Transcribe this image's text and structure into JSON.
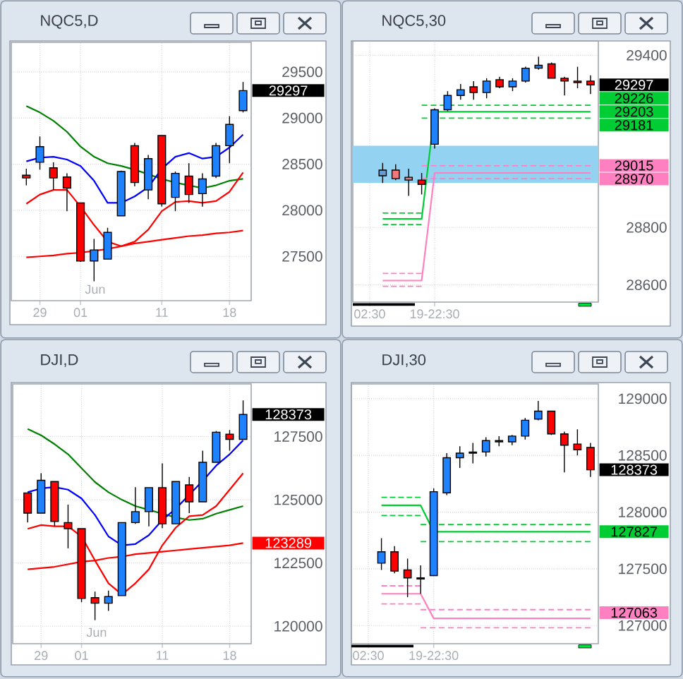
{
  "chart_data": [
    {
      "type": "candlestick",
      "title": "NQC5,D",
      "categories": [
        null,
        "29",
        null,
        null,
        "01",
        null,
        null,
        null,
        null,
        null,
        "11",
        null,
        null,
        null,
        null,
        "18",
        null
      ],
      "ohlc": [
        [
          28380,
          28450,
          28270,
          28350
        ],
        [
          28520,
          28800,
          28440,
          28690
        ],
        [
          28460,
          28520,
          28220,
          28350
        ],
        [
          28360,
          28400,
          27990,
          28240
        ],
        [
          28080,
          28080,
          27440,
          27450
        ],
        [
          27450,
          27690,
          27230,
          27570
        ],
        [
          27470,
          27810,
          27470,
          27760
        ],
        [
          27940,
          28430,
          27940,
          28420
        ],
        [
          28700,
          28730,
          28260,
          28300
        ],
        [
          28220,
          28600,
          28120,
          28560
        ],
        [
          28810,
          28810,
          28040,
          28070
        ],
        [
          28140,
          28420,
          27990,
          28400
        ],
        [
          28370,
          28510,
          28080,
          28170
        ],
        [
          28180,
          28400,
          28040,
          28340
        ],
        [
          28370,
          28730,
          28350,
          28700
        ],
        [
          28700,
          29020,
          28510,
          28930
        ],
        [
          29080,
          29390,
          29060,
          29297
        ]
      ],
      "value_labels": [
        null,
        null,
        null,
        null,
        null,
        null,
        null,
        null,
        null,
        null,
        null,
        null,
        null,
        null,
        null,
        null,
        "29297"
      ],
      "colors": [
        "#ff0000",
        "#1e82ff",
        "#ff0000",
        "#ff0000",
        "#ff0000",
        "#1e82ff",
        "#1e82ff",
        "#1e82ff",
        "#ff0000",
        "#1e82ff",
        "#ff0000",
        "#1e82ff",
        "#ff0000",
        "#1e82ff",
        "#1e82ff",
        "#1e82ff",
        "#1e82ff"
      ],
      "series": [
        {
          "type": "line",
          "color": "#008000",
          "values": [
            29130,
            29060,
            28970,
            28850,
            28690,
            28580,
            28510,
            28480,
            28440,
            28390,
            28340,
            28300,
            28270,
            28240,
            28270,
            28320,
            28340
          ]
        },
        {
          "type": "line",
          "color": "#0000ff",
          "values": [
            28530,
            28570,
            28580,
            28550,
            28480,
            28320,
            28080,
            28080,
            28150,
            28250,
            28450,
            28580,
            28620,
            28560,
            28580,
            28680,
            28820
          ]
        },
        {
          "type": "line",
          "color": "#ff0000",
          "values": [
            28070,
            28170,
            28220,
            28220,
            28040,
            27840,
            27660,
            27610,
            27660,
            27790,
            27990,
            28090,
            28100,
            28080,
            28100,
            28200,
            28410
          ]
        },
        {
          "type": "line",
          "color": "#ff0000",
          "values": [
            27490,
            27500,
            27510,
            27530,
            27540,
            27560,
            27580,
            27610,
            27640,
            27660,
            27680,
            27700,
            27720,
            27730,
            27750,
            27760,
            27780
          ]
        }
      ],
      "ylim": [
        27020,
        29820
      ],
      "yticks": [
        27500,
        28000,
        28500,
        29000,
        29500
      ],
      "grid": true,
      "annotations": [
        "Jun"
      ]
    },
    {
      "type": "candlestick",
      "title": "NQC5,30",
      "categories": [
        "02:30",
        null,
        null,
        null,
        null,
        "19-22:30",
        null,
        null,
        null,
        null,
        null,
        null,
        null,
        null,
        null,
        null,
        null,
        null
      ],
      "ohlc": [
        null,
        [
          28980,
          29025,
          28955,
          29000
        ],
        [
          29000,
          29020,
          28965,
          28970
        ],
        [
          28975,
          29005,
          28910,
          28965
        ],
        [
          28965,
          28990,
          28915,
          28950
        ],
        [
          29090,
          29215,
          29075,
          29210
        ],
        [
          29210,
          29275,
          29205,
          29260
        ],
        [
          29260,
          29300,
          29245,
          29280
        ],
        [
          29290,
          29310,
          29245,
          29270
        ],
        [
          29270,
          29320,
          29250,
          29310
        ],
        [
          29315,
          29325,
          29285,
          29290
        ],
        [
          29290,
          29320,
          29275,
          29310
        ],
        [
          29310,
          29360,
          29305,
          29355
        ],
        [
          29355,
          29395,
          29350,
          29365
        ],
        [
          29370,
          29375,
          29320,
          29320
        ],
        [
          29320,
          29325,
          29260,
          29310
        ],
        [
          29310,
          29360,
          29285,
          29305
        ],
        [
          29310,
          29330,
          29265,
          29297
        ]
      ],
      "value_labels": [
        null,
        null,
        null,
        null,
        null,
        null,
        null,
        null,
        null,
        null,
        null,
        null,
        null,
        null,
        null,
        null,
        null,
        "29297"
      ],
      "colors": [
        null,
        "#6a9bd0",
        "#f07878",
        "#c88080",
        "#ff0000",
        "#1e82ff",
        "#1e82ff",
        "#1e82ff",
        "#ff0000",
        "#1e82ff",
        "#ff0000",
        "#1e82ff",
        "#1e82ff",
        "#1e82ff",
        "#ff0000",
        "#ff0000",
        "#ff0000",
        "#ff0000"
      ],
      "series": [
        {
          "type": "line",
          "color": "#00cc33",
          "values": [
            null,
            28830,
            28830,
            28830,
            28830,
            29203,
            29203,
            29203,
            29203,
            29203,
            29203,
            29203,
            29203,
            29203,
            29203,
            29203,
            29203,
            29203
          ],
          "value_labels": [
            null,
            null,
            null,
            null,
            null,
            null,
            null,
            null,
            null,
            null,
            null,
            null,
            null,
            null,
            null,
            null,
            null,
            "29203"
          ]
        },
        {
          "type": "line",
          "color": "#00cc33",
          "line_style": "dashed",
          "values": [
            null,
            28850,
            28850,
            28850,
            28850,
            null,
            null,
            null,
            null,
            null,
            null,
            null,
            null,
            null,
            null,
            null,
            null,
            null
          ]
        },
        {
          "type": "line",
          "color": "#00cc33",
          "line_style": "dashed",
          "values": [
            null,
            null,
            null,
            null,
            29226,
            29226,
            29226,
            29226,
            29226,
            29226,
            29226,
            29226,
            29226,
            29226,
            29226,
            29226,
            29226,
            29226
          ],
          "value_labels": [
            null,
            null,
            null,
            null,
            null,
            null,
            null,
            null,
            null,
            null,
            null,
            null,
            null,
            null,
            null,
            null,
            null,
            "29226"
          ]
        },
        {
          "type": "line",
          "color": "#00cc33",
          "line_style": "dashed",
          "values": [
            null,
            28810,
            28810,
            28810,
            28810,
            null,
            null,
            null,
            null,
            null,
            null,
            null,
            null,
            null,
            null,
            null,
            null,
            null
          ]
        },
        {
          "type": "line",
          "color": "#00cc33",
          "line_style": "dashed",
          "values": [
            null,
            null,
            null,
            null,
            29181,
            29181,
            29181,
            29181,
            29181,
            29181,
            29181,
            29181,
            29181,
            29181,
            29181,
            29181,
            29181,
            29181
          ],
          "value_labels": [
            null,
            null,
            null,
            null,
            null,
            null,
            null,
            null,
            null,
            null,
            null,
            null,
            null,
            null,
            null,
            null,
            null,
            "29181"
          ]
        },
        {
          "type": "line",
          "color": "#ff80c0",
          "values": [
            null,
            28615,
            28615,
            28615,
            28615,
            28990,
            28990,
            28990,
            28990,
            28990,
            28990,
            28990,
            28990,
            28990,
            28990,
            28990,
            28990,
            28990
          ]
        },
        {
          "type": "line",
          "color": "#ff80c0",
          "line_style": "dashed",
          "values": [
            null,
            28640,
            28640,
            28640,
            28640,
            null,
            null,
            null,
            null,
            null,
            null,
            null,
            null,
            null,
            null,
            null,
            null,
            null
          ]
        },
        {
          "type": "line",
          "color": "#ff80c0",
          "line_style": "dashed",
          "values": [
            null,
            null,
            null,
            null,
            29015,
            29015,
            29015,
            29015,
            29015,
            29015,
            29015,
            29015,
            29015,
            29015,
            29015,
            29015,
            29015,
            29015
          ],
          "value_labels": [
            null,
            null,
            null,
            null,
            null,
            null,
            null,
            null,
            null,
            null,
            null,
            null,
            null,
            null,
            null,
            null,
            null,
            "29015"
          ]
        },
        {
          "type": "line",
          "color": "#ff80c0",
          "line_style": "dashed",
          "values": [
            null,
            28595,
            28595,
            28595,
            28595,
            null,
            null,
            null,
            null,
            null,
            null,
            null,
            null,
            null,
            null,
            null,
            null,
            null
          ]
        },
        {
          "type": "line",
          "color": "#ff80c0",
          "line_style": "dashed",
          "values": [
            null,
            null,
            null,
            null,
            28970,
            28970,
            28970,
            28970,
            28970,
            28970,
            28970,
            28970,
            28970,
            28970,
            28970,
            28970,
            28970,
            28970
          ],
          "value_labels": [
            null,
            null,
            null,
            null,
            null,
            null,
            null,
            null,
            null,
            null,
            null,
            null,
            null,
            null,
            null,
            null,
            null,
            "28970"
          ]
        }
      ],
      "bands": [
        {
          "axis": "y",
          "from": 28955,
          "to": 29085,
          "color": "#94d2f2"
        }
      ],
      "ylim": [
        28540,
        29450
      ],
      "yticks": [
        28600,
        28800,
        29400
      ],
      "grid": true
    },
    {
      "type": "candlestick",
      "title": "DJI,D",
      "categories": [
        null,
        "29",
        null,
        null,
        "01",
        null,
        null,
        null,
        null,
        null,
        "11",
        null,
        null,
        null,
        null,
        "18",
        null
      ],
      "ohlc": [
        [
          125270,
          125270,
          124100,
          124470
        ],
        [
          124470,
          126050,
          124470,
          125770
        ],
        [
          125720,
          125720,
          123950,
          124140
        ],
        [
          124100,
          124810,
          123080,
          123860
        ],
        [
          123860,
          123860,
          120950,
          121100
        ],
        [
          121130,
          121370,
          120240,
          120910
        ],
        [
          120910,
          121410,
          120610,
          121170
        ],
        [
          121210,
          124100,
          121210,
          124100
        ],
        [
          124100,
          125500,
          124050,
          124530
        ],
        [
          124530,
          125480,
          123950,
          125480
        ],
        [
          125480,
          126440,
          123880,
          124050
        ],
        [
          124050,
          125720,
          124050,
          125720
        ],
        [
          125590,
          125900,
          124470,
          124920
        ],
        [
          124920,
          126940,
          124920,
          126480
        ],
        [
          126480,
          127720,
          126480,
          127670
        ],
        [
          127590,
          127760,
          126940,
          127390
        ],
        [
          127390,
          128930,
          127390,
          128373
        ]
      ],
      "value_labels": [
        null,
        null,
        null,
        null,
        null,
        null,
        null,
        null,
        null,
        null,
        null,
        null,
        null,
        null,
        null,
        null,
        "128373"
      ],
      "colors": [
        "#ff0000",
        "#1e82ff",
        "#ff0000",
        "#ff0000",
        "#ff0000",
        "#ff0000",
        "#1e82ff",
        "#1e82ff",
        "#1e82ff",
        "#1e82ff",
        "#ff0000",
        "#1e82ff",
        "#ff0000",
        "#1e82ff",
        "#1e82ff",
        "#ff0000",
        "#1e82ff"
      ],
      "series": [
        {
          "type": "line",
          "color": "#008000",
          "values": [
            127800,
            127550,
            127200,
            126800,
            126250,
            125700,
            125300,
            125000,
            124750,
            124600,
            124450,
            124300,
            124200,
            124250,
            124450,
            124600,
            124750
          ]
        },
        {
          "type": "line",
          "color": "#0000ff",
          "values": [
            125300,
            125450,
            125500,
            125400,
            125050,
            124400,
            123550,
            123200,
            123250,
            123600,
            124200,
            124650,
            125200,
            125750,
            126350,
            126800,
            127350
          ]
        },
        {
          "type": "line",
          "color": "#ff0000",
          "values": [
            123850,
            124000,
            123950,
            123950,
            123550,
            122600,
            121700,
            121250,
            121700,
            122250,
            123200,
            123900,
            124350,
            124400,
            124750,
            125400,
            126050
          ]
        },
        {
          "type": "line",
          "color": "#ff0000",
          "values": [
            122250,
            122300,
            122350,
            122450,
            122550,
            122600,
            122700,
            122750,
            122850,
            122900,
            122950,
            123000,
            123050,
            123100,
            123150,
            123200,
            123289
          ],
          "value_labels": [
            null,
            null,
            null,
            null,
            null,
            null,
            null,
            null,
            null,
            null,
            null,
            null,
            null,
            null,
            null,
            null,
            "123289"
          ]
        }
      ],
      "ylim": [
        119310,
        129580
      ],
      "yticks": [
        120000,
        122500,
        125000,
        127500
      ],
      "grid": true,
      "annotations": [
        "Jun"
      ]
    },
    {
      "type": "candlestick",
      "title": "DJI,30",
      "categories": [
        "02:30",
        null,
        null,
        null,
        null,
        "19-22:30",
        null,
        null,
        null,
        null,
        null,
        null,
        null,
        null,
        null,
        null,
        null,
        null
      ],
      "ohlc": [
        null,
        [
          127550,
          127770,
          127490,
          127650
        ],
        [
          127650,
          127700,
          127460,
          127480
        ],
        [
          127490,
          127590,
          127250,
          127420
        ],
        [
          127420,
          127530,
          127280,
          127410
        ],
        [
          127440,
          128210,
          127440,
          128180
        ],
        [
          128170,
          128520,
          128150,
          128480
        ],
        [
          128480,
          128580,
          128390,
          128520
        ],
        [
          128530,
          128610,
          128430,
          128520
        ],
        [
          128530,
          128660,
          128490,
          128630
        ],
        [
          128630,
          128670,
          128580,
          128620
        ],
        [
          128620,
          128680,
          128590,
          128670
        ],
        [
          128670,
          128830,
          128640,
          128810
        ],
        [
          128820,
          128980,
          128810,
          128890
        ],
        [
          128890,
          128890,
          128680,
          128690
        ],
        [
          128690,
          128710,
          128350,
          128590
        ],
        [
          128600,
          128730,
          128500,
          128550
        ],
        [
          128570,
          128610,
          128310,
          128373
        ]
      ],
      "value_labels": [
        null,
        null,
        null,
        null,
        null,
        null,
        null,
        null,
        null,
        null,
        null,
        null,
        null,
        null,
        null,
        null,
        null,
        "128373"
      ],
      "colors": [
        null,
        "#1e82ff",
        "#ff0000",
        "#ff0000",
        "#ff0000",
        "#1e82ff",
        "#1e82ff",
        "#1e82ff",
        "#ff0000",
        "#1e82ff",
        "#ff0000",
        "#1e82ff",
        "#1e82ff",
        "#1e82ff",
        "#ff0000",
        "#ff0000",
        "#ff0000",
        "#ff0000"
      ],
      "series": [
        {
          "type": "line",
          "color": "#00cc33",
          "values": [
            null,
            128060,
            128060,
            128060,
            128060,
            127827,
            127827,
            127827,
            127827,
            127827,
            127827,
            127827,
            127827,
            127827,
            127827,
            127827,
            127827,
            127827
          ],
          "value_labels": [
            null,
            null,
            null,
            null,
            null,
            null,
            null,
            null,
            null,
            null,
            null,
            null,
            null,
            null,
            null,
            null,
            null,
            "127827"
          ]
        },
        {
          "type": "line",
          "color": "#00cc33",
          "line_style": "dashed",
          "values": [
            null,
            128130,
            128130,
            128130,
            128130,
            null,
            null,
            null,
            null,
            null,
            null,
            null,
            null,
            null,
            null,
            null,
            null,
            null
          ]
        },
        {
          "type": "line",
          "color": "#00cc33",
          "line_style": "dashed",
          "values": [
            null,
            null,
            null,
            null,
            127890,
            127890,
            127890,
            127890,
            127890,
            127890,
            127890,
            127890,
            127890,
            127890,
            127890,
            127890,
            127890,
            127890
          ]
        },
        {
          "type": "line",
          "color": "#00cc33",
          "line_style": "dashed",
          "values": [
            null,
            127970,
            127970,
            127970,
            127970,
            null,
            null,
            null,
            null,
            null,
            null,
            null,
            null,
            null,
            null,
            null,
            null,
            null
          ]
        },
        {
          "type": "line",
          "color": "#00cc33",
          "line_style": "dashed",
          "values": [
            null,
            null,
            null,
            null,
            127740,
            127740,
            127740,
            127740,
            127740,
            127740,
            127740,
            127740,
            127740,
            127740,
            127740,
            127740,
            127740,
            127740
          ]
        },
        {
          "type": "line",
          "color": "#ff80c0",
          "values": [
            null,
            127280,
            127280,
            127280,
            127280,
            127063,
            127063,
            127063,
            127063,
            127063,
            127063,
            127063,
            127063,
            127063,
            127063,
            127063,
            127063,
            127063
          ],
          "value_labels": [
            null,
            null,
            null,
            null,
            null,
            null,
            null,
            null,
            null,
            null,
            null,
            null,
            null,
            null,
            null,
            null,
            null,
            "127063"
          ]
        },
        {
          "type": "line",
          "color": "#ff80c0",
          "line_style": "dashed",
          "values": [
            null,
            127350,
            127350,
            127350,
            127350,
            null,
            null,
            null,
            null,
            null,
            null,
            null,
            null,
            null,
            null,
            null,
            null,
            null
          ]
        },
        {
          "type": "line",
          "color": "#ff80c0",
          "line_style": "dashed",
          "values": [
            null,
            null,
            null,
            null,
            127140,
            127140,
            127140,
            127140,
            127140,
            127140,
            127140,
            127140,
            127140,
            127140,
            127140,
            127140,
            127140,
            127140
          ]
        },
        {
          "type": "line",
          "color": "#ff80c0",
          "line_style": "dashed",
          "values": [
            null,
            127190,
            127190,
            127190,
            127190,
            null,
            null,
            null,
            null,
            null,
            null,
            null,
            null,
            null,
            null,
            null,
            null,
            null
          ]
        },
        {
          "type": "line",
          "color": "#ff80c0",
          "line_style": "dashed",
          "values": [
            null,
            null,
            null,
            null,
            126980,
            126980,
            126980,
            126980,
            126980,
            126980,
            126980,
            126980,
            126980,
            126980,
            126980,
            126980,
            126980,
            126980
          ]
        }
      ],
      "ylim": [
        126840,
        129130
      ],
      "yticks": [
        127000,
        127500,
        128000,
        128500,
        129000
      ],
      "grid": true
    }
  ]
}
